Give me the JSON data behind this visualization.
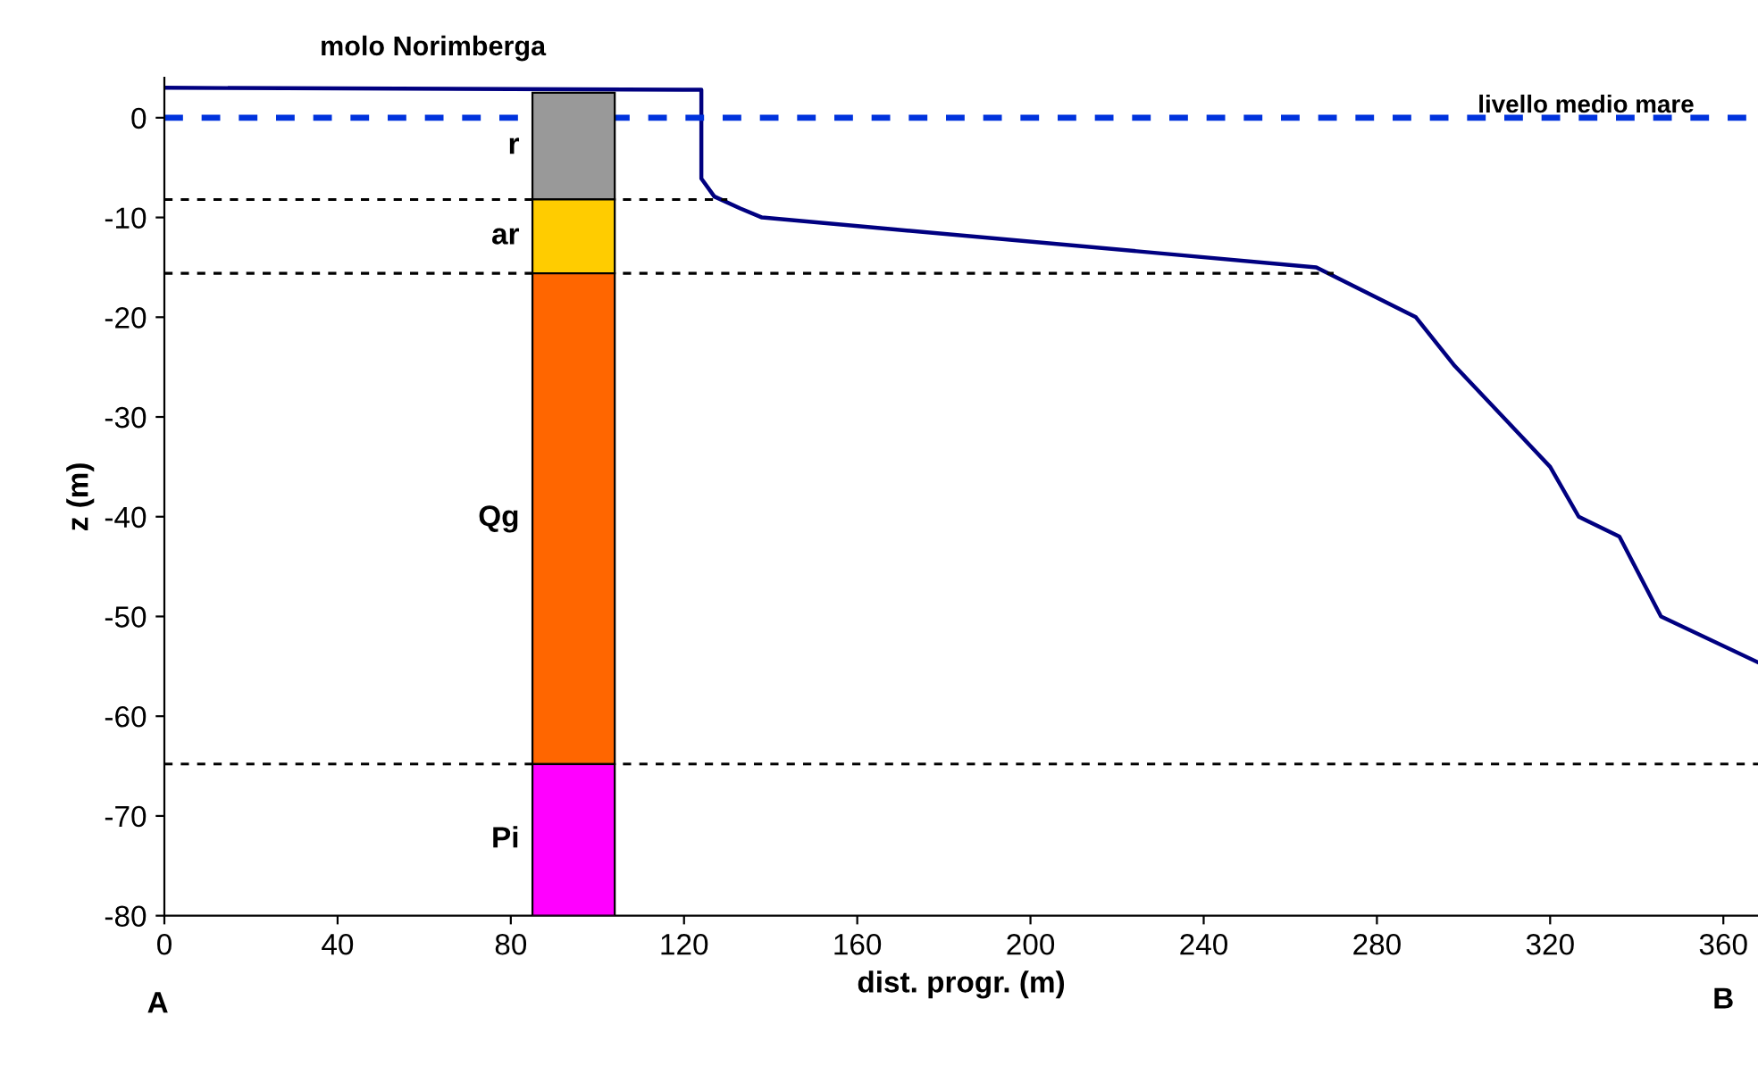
{
  "chart_data": {
    "type": "line",
    "xlabel": "dist. progr. (m)",
    "ylabel": "z (m)",
    "xlim": [
      0,
      368
    ],
    "xticks": [
      0,
      40,
      80,
      120,
      160,
      200,
      240,
      280,
      320,
      360
    ],
    "ylim": [
      -80,
      4
    ],
    "yticks": [
      -80,
      -70,
      -60,
      -50,
      -40,
      -30,
      -20,
      -10,
      0
    ],
    "grid": false,
    "marker": "none",
    "series": [
      {
        "color": "#000080",
        "line_style": "solid",
        "x": [
          0,
          124,
          124,
          127,
          133,
          138,
          266,
          289,
          298,
          310,
          320,
          326.6,
          336,
          345.6,
          368
        ],
        "values": [
          3.0,
          2.8,
          -6.1,
          -7.9,
          -9.1,
          -10,
          -15,
          -20,
          -24.9,
          -30.4,
          -35,
          -40,
          -42,
          -50,
          -54.6
        ]
      },
      {
        "type": "line",
        "color": "#000000",
        "line_style": "dashed",
        "x": [
          0,
          130
        ],
        "values": [
          -8.2,
          -8.2
        ]
      },
      {
        "type": "line",
        "color": "#000000",
        "line_style": "dashed",
        "x": [
          0,
          270
        ],
        "values": [
          -15.6,
          -15.6
        ]
      },
      {
        "type": "line",
        "color": "#000000",
        "line_style": "dashed",
        "x": [
          0,
          368
        ],
        "values": [
          -64.8,
          -64.8
        ]
      },
      {
        "type": "bar",
        "name": "r",
        "color": "#999999",
        "x": [
          94.5
        ],
        "base": [
          -8.2
        ],
        "values": [
          10.7
        ]
      },
      {
        "type": "bar",
        "name": "ar",
        "color": "#ffcc00",
        "x": [
          94.5
        ],
        "base": [
          -15.6
        ],
        "values": [
          7.4
        ]
      },
      {
        "type": "bar",
        "name": "Qg",
        "color": "#ff6600",
        "x": [
          94.5
        ],
        "base": [
          -64.8
        ],
        "values": [
          49.2
        ]
      },
      {
        "type": "bar",
        "name": "Pi",
        "color": "#ff00ff",
        "x": [
          94.5
        ],
        "base": [
          -80
        ],
        "values": [
          15.2
        ]
      }
    ],
    "ref_lines": [
      {
        "axis": "y",
        "value": 0,
        "label": "livello medio mare",
        "color": "#0033dd",
        "line_style": "dashed"
      }
    ],
    "annotations": [
      "molo Norimberga",
      "A",
      "B"
    ]
  }
}
